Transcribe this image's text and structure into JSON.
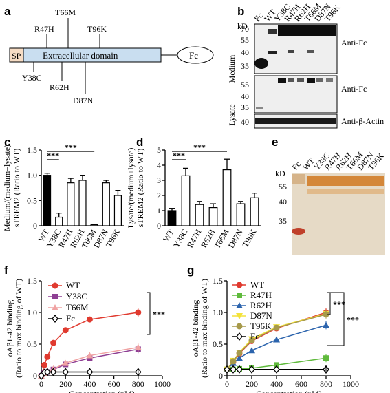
{
  "panels": {
    "a": {
      "letter": "a",
      "sp_label": "SP",
      "domain_label": "Extracellular domain",
      "fc_label": "Fc",
      "mutations_top": [
        "R47H",
        "T66M",
        "T96K"
      ],
      "mutations_bottom": [
        "Y38C",
        "R62H",
        "D87N"
      ]
    },
    "b": {
      "letter": "b",
      "lanes": [
        "Fc",
        "WT",
        "Y38C",
        "R47H",
        "R62H",
        "T66M",
        "D87N",
        "T96K"
      ],
      "kd_label": "kD",
      "medium_markers": [
        "70",
        "55",
        "40",
        "35"
      ],
      "lysate_markers": [
        "55",
        "40",
        "35"
      ],
      "actin_marker": "40",
      "row_labels": [
        "Medium",
        "Lysate"
      ],
      "blot_labels": [
        "Anti-Fc",
        "Anti-Fc",
        "Anti-β-Actin"
      ]
    },
    "e": {
      "letter": "e",
      "lanes": [
        "Fc",
        "WT",
        "Y38C",
        "R47H",
        "R62H",
        "T66M",
        "D87N",
        "T96K"
      ],
      "kd_label": "kD",
      "markers": [
        "55",
        "40",
        "35"
      ]
    }
  },
  "chart_data": [
    {
      "panel": "c",
      "type": "bar",
      "categories": [
        "WT",
        "Y38C",
        "R47H",
        "R62H",
        "T66M",
        "D87N",
        "T96K"
      ],
      "values": [
        1.0,
        0.17,
        0.85,
        0.9,
        0.02,
        0.85,
        0.6
      ],
      "errors": [
        0.04,
        0.08,
        0.09,
        0.1,
        0.01,
        0.05,
        0.1
      ],
      "bar_colors": [
        "#000000",
        "#ffffff",
        "#ffffff",
        "#ffffff",
        "#ffffff",
        "#ffffff",
        "#ffffff"
      ],
      "ylabel_lines": [
        "Medium/(medium+lysate)",
        "sTREM2 (Ratio to WT)"
      ],
      "ylim": [
        0,
        1.5
      ],
      "yticks": [
        "0",
        "0.5",
        "1.0",
        "1.5"
      ],
      "significance": [
        {
          "from": "WT",
          "to": "Y38C",
          "label": "***"
        },
        {
          "from": "WT",
          "to": "T66M",
          "label": "***"
        }
      ]
    },
    {
      "panel": "d",
      "type": "bar",
      "categories": [
        "WT",
        "Y38C",
        "R47H",
        "R62H",
        "T66M",
        "D87N",
        "T96K"
      ],
      "values": [
        1.0,
        3.3,
        1.4,
        1.2,
        3.7,
        1.45,
        1.85
      ],
      "errors": [
        0.15,
        0.5,
        0.2,
        0.25,
        0.7,
        0.15,
        0.3
      ],
      "bar_colors": [
        "#000000",
        "#ffffff",
        "#ffffff",
        "#ffffff",
        "#ffffff",
        "#ffffff",
        "#ffffff"
      ],
      "ylabel_lines": [
        "Lysate/(medium+lysate)",
        "sTREM2 (Ratio to WT)"
      ],
      "ylim": [
        0,
        5
      ],
      "yticks": [
        "0",
        "1",
        "2",
        "3",
        "4",
        "5"
      ],
      "significance": [
        {
          "from": "WT",
          "to": "Y38C",
          "label": "***"
        },
        {
          "from": "WT",
          "to": "T66M",
          "label": "***"
        }
      ]
    },
    {
      "panel": "f",
      "type": "line",
      "xlabel": "Concentration (nM)",
      "ylabel_lines": [
        "oAβ1-42 binding",
        "(Ratio to max binding of WT)"
      ],
      "xlim": [
        0,
        1000
      ],
      "ylim": [
        0,
        1.5
      ],
      "xticks": [
        "0",
        "200",
        "400",
        "600",
        "800",
        "1000"
      ],
      "yticks": [
        "0",
        "0.5",
        "1.0",
        "1.5"
      ],
      "x": [
        0,
        25,
        50,
        100,
        200,
        400,
        800
      ],
      "legend_position": "top-left",
      "series": [
        {
          "name": "WT",
          "color": "#e03a2f",
          "marker": "circle",
          "values": [
            0.0,
            0.17,
            0.3,
            0.52,
            0.72,
            0.89,
            1.0
          ]
        },
        {
          "name": "Y38C",
          "color": "#8e3f93",
          "marker": "square",
          "values": [
            0.0,
            0.04,
            0.06,
            0.1,
            0.18,
            0.28,
            0.42
          ]
        },
        {
          "name": "T66M",
          "color": "#f0a3a3",
          "marker": "triangle",
          "values": [
            0.0,
            0.04,
            0.07,
            0.11,
            0.2,
            0.32,
            0.45
          ]
        },
        {
          "name": "Fc",
          "color": "#000000",
          "marker": "diamond",
          "values": [
            0.0,
            0.05,
            0.06,
            0.06,
            0.06,
            0.06,
            0.06
          ]
        }
      ],
      "significance": [
        {
          "label": "***"
        }
      ]
    },
    {
      "panel": "g",
      "type": "line",
      "xlabel": "Concentration (nM)",
      "ylabel_lines": [
        "oAβ1-42 binding",
        "(Ratio to max binding of WT)"
      ],
      "xlim": [
        0,
        1000
      ],
      "ylim": [
        0,
        1.5
      ],
      "xticks": [
        "0",
        "200",
        "400",
        "600",
        "800",
        "1000"
      ],
      "yticks": [
        "0",
        "0.5",
        "1.0",
        "1.5"
      ],
      "x": [
        0,
        50,
        100,
        200,
        400,
        800
      ],
      "legend_position": "top-left",
      "series": [
        {
          "name": "WT",
          "color": "#e03a2f",
          "marker": "circle",
          "values": [
            0.1,
            0.22,
            0.35,
            0.55,
            0.75,
            1.0
          ]
        },
        {
          "name": "R47H",
          "color": "#5fba3c",
          "marker": "square",
          "values": [
            0.1,
            0.1,
            0.11,
            0.12,
            0.17,
            0.28
          ]
        },
        {
          "name": "R62H",
          "color": "#2c64ad",
          "marker": "triangle",
          "values": [
            0.1,
            0.2,
            0.28,
            0.4,
            0.57,
            0.8
          ]
        },
        {
          "name": "D87N",
          "color": "#f3e23a",
          "marker": "triangle-down",
          "values": [
            0.1,
            0.24,
            0.37,
            0.58,
            0.77,
            0.98
          ]
        },
        {
          "name": "T96K",
          "color": "#a79a4b",
          "marker": "circle",
          "values": [
            0.1,
            0.23,
            0.36,
            0.56,
            0.76,
            0.97
          ]
        },
        {
          "name": "Fc",
          "color": "#000000",
          "marker": "diamond",
          "values": [
            0.1,
            0.1,
            0.1,
            0.1,
            0.1,
            0.1
          ]
        }
      ],
      "significance": [
        {
          "label": "***"
        },
        {
          "label": "***"
        }
      ]
    }
  ],
  "colors": {
    "sp_box": "#f6dcc4",
    "domain_box": "#c9def0",
    "blot_bg": "#efefef",
    "stain_bg": "#e6dac6",
    "stain_band": "#d07820",
    "fc_band": "#c0402a"
  }
}
